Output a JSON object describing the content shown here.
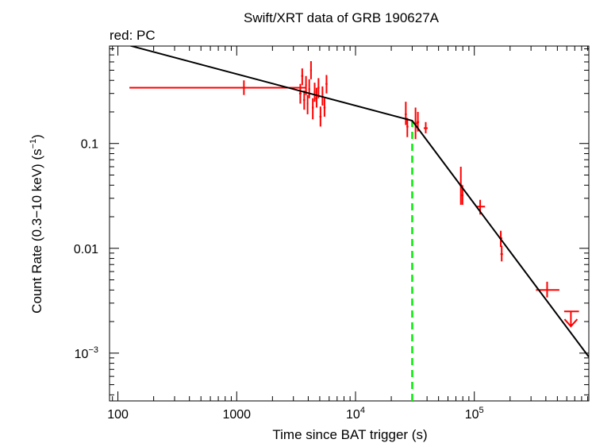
{
  "chart_data": {
    "type": "scatter",
    "title": "Swift/XRT data of GRB 190627A",
    "subtitle": "red: PC",
    "xlabel": "Time since BAT trigger (s)",
    "ylabel": {
      "main": "Count Rate (0.3−10 keV) (s",
      "sup": "−1",
      "close": ")"
    },
    "xscale": "log",
    "yscale": "log",
    "xlim": [
      85,
      920000
    ],
    "ylim": [
      0.00035,
      0.85
    ],
    "x_ticks": [
      {
        "value": 100,
        "label": "100"
      },
      {
        "value": 1000,
        "label": "1000"
      },
      {
        "value": 10000,
        "base": "10",
        "exp": "4"
      },
      {
        "value": 100000,
        "base": "10",
        "exp": "5"
      }
    ],
    "y_ticks": [
      {
        "value": 0.1,
        "label": "0.1"
      },
      {
        "value": 0.01,
        "label": "0.01"
      },
      {
        "value": 0.001,
        "base": "10",
        "exp": "−3"
      }
    ],
    "series": [
      {
        "name": "PC",
        "color": "#ff0000",
        "points": [
          {
            "x": 1150,
            "y": 0.34,
            "xerr": [
              125,
              3800
            ],
            "yerr": [
              0.29,
              0.4
            ]
          },
          {
            "x": 3430,
            "y": 0.3,
            "xerr": [
              3350,
              3510
            ],
            "yerr": [
              0.24,
              0.37
            ]
          },
          {
            "x": 3560,
            "y": 0.44,
            "xerr": [
              3490,
              3630
            ],
            "yerr": [
              0.36,
              0.52
            ]
          },
          {
            "x": 3700,
            "y": 0.26,
            "xerr": [
              3630,
              3770
            ],
            "yerr": [
              0.21,
              0.32
            ]
          },
          {
            "x": 3830,
            "y": 0.36,
            "xerr": [
              3770,
              3890
            ],
            "yerr": [
              0.29,
              0.44
            ]
          },
          {
            "x": 3950,
            "y": 0.24,
            "xerr": [
              3890,
              4010
            ],
            "yerr": [
              0.19,
              0.29
            ]
          },
          {
            "x": 4080,
            "y": 0.33,
            "xerr": [
              4010,
              4150
            ],
            "yerr": [
              0.27,
              0.41
            ]
          },
          {
            "x": 4220,
            "y": 0.5,
            "xerr": [
              4150,
              4290
            ],
            "yerr": [
              0.41,
              0.61
            ]
          },
          {
            "x": 4370,
            "y": 0.22,
            "xerr": [
              4290,
              4450
            ],
            "yerr": [
              0.17,
              0.27
            ]
          },
          {
            "x": 4530,
            "y": 0.31,
            "xerr": [
              4450,
              4610
            ],
            "yerr": [
              0.25,
              0.38
            ]
          },
          {
            "x": 4700,
            "y": 0.27,
            "xerr": [
              4610,
              4790
            ],
            "yerr": [
              0.22,
              0.34
            ]
          },
          {
            "x": 4880,
            "y": 0.34,
            "xerr": [
              4790,
              4970
            ],
            "yerr": [
              0.27,
              0.42
            ]
          },
          {
            "x": 5070,
            "y": 0.18,
            "xerr": [
              4970,
              5170
            ],
            "yerr": [
              0.145,
              0.225
            ]
          },
          {
            "x": 5270,
            "y": 0.28,
            "xerr": [
              5170,
              5380
            ],
            "yerr": [
              0.23,
              0.35
            ]
          },
          {
            "x": 5480,
            "y": 0.22,
            "xerr": [
              5380,
              5590
            ],
            "yerr": [
              0.18,
              0.27
            ]
          },
          {
            "x": 5700,
            "y": 0.37,
            "xerr": [
              5590,
              5810
            ],
            "yerr": [
              0.3,
              0.45
            ]
          },
          {
            "x": 26500,
            "y": 0.19,
            "xerr": [
              26000,
              27000
            ],
            "yerr": [
              0.15,
              0.25
            ]
          },
          {
            "x": 27300,
            "y": 0.145,
            "xerr": [
              26800,
              27900
            ],
            "yerr": [
              0.115,
              0.175
            ]
          },
          {
            "x": 32000,
            "y": 0.155,
            "xerr": [
              31000,
              33000
            ],
            "yerr": [
              0.11,
              0.22
            ]
          },
          {
            "x": 33500,
            "y": 0.16,
            "xerr": [
              32700,
              34300
            ],
            "yerr": [
              0.13,
              0.2
            ]
          },
          {
            "x": 39000,
            "y": 0.14,
            "xerr": [
              37500,
              40500
            ],
            "yerr": [
              0.125,
              0.16
            ]
          },
          {
            "x": 77000,
            "y": 0.04,
            "xerr": [
              75000,
              79000
            ],
            "yerr": [
              0.026,
              0.06
            ]
          },
          {
            "x": 79500,
            "y": 0.032,
            "xerr": [
              78000,
              81000
            ],
            "yerr": [
              0.026,
              0.04
            ]
          },
          {
            "x": 112000,
            "y": 0.025,
            "xerr": [
              103000,
              123000
            ],
            "yerr": [
              0.021,
              0.029
            ]
          },
          {
            "x": 167000,
            "y": 0.0125,
            "xerr": [
              162000,
              172000
            ],
            "yerr": [
              0.0103,
              0.0147
            ]
          },
          {
            "x": 170000,
            "y": 0.0088,
            "xerr": [
              166000,
              174000
            ],
            "yerr": [
              0.0075,
              0.0106
            ]
          },
          {
            "x": 410000,
            "y": 0.004,
            "xerr": [
              330000,
              520000
            ],
            "yerr": [
              0.0034,
              0.0048
            ]
          }
        ],
        "upper_limits": [
          {
            "x": 650000,
            "y": 0.0025,
            "xerr": [
              570000,
              760000
            ],
            "arrow_to": 0.0018
          }
        ]
      }
    ],
    "model": {
      "name": "broken power-law fit",
      "color": "#000000",
      "points": [
        [
          125,
          0.86
        ],
        [
          30000,
          0.165
        ],
        [
          920000,
          0.00092
        ]
      ]
    },
    "break_marker": {
      "x": 30000,
      "color": "#00ee00"
    }
  }
}
